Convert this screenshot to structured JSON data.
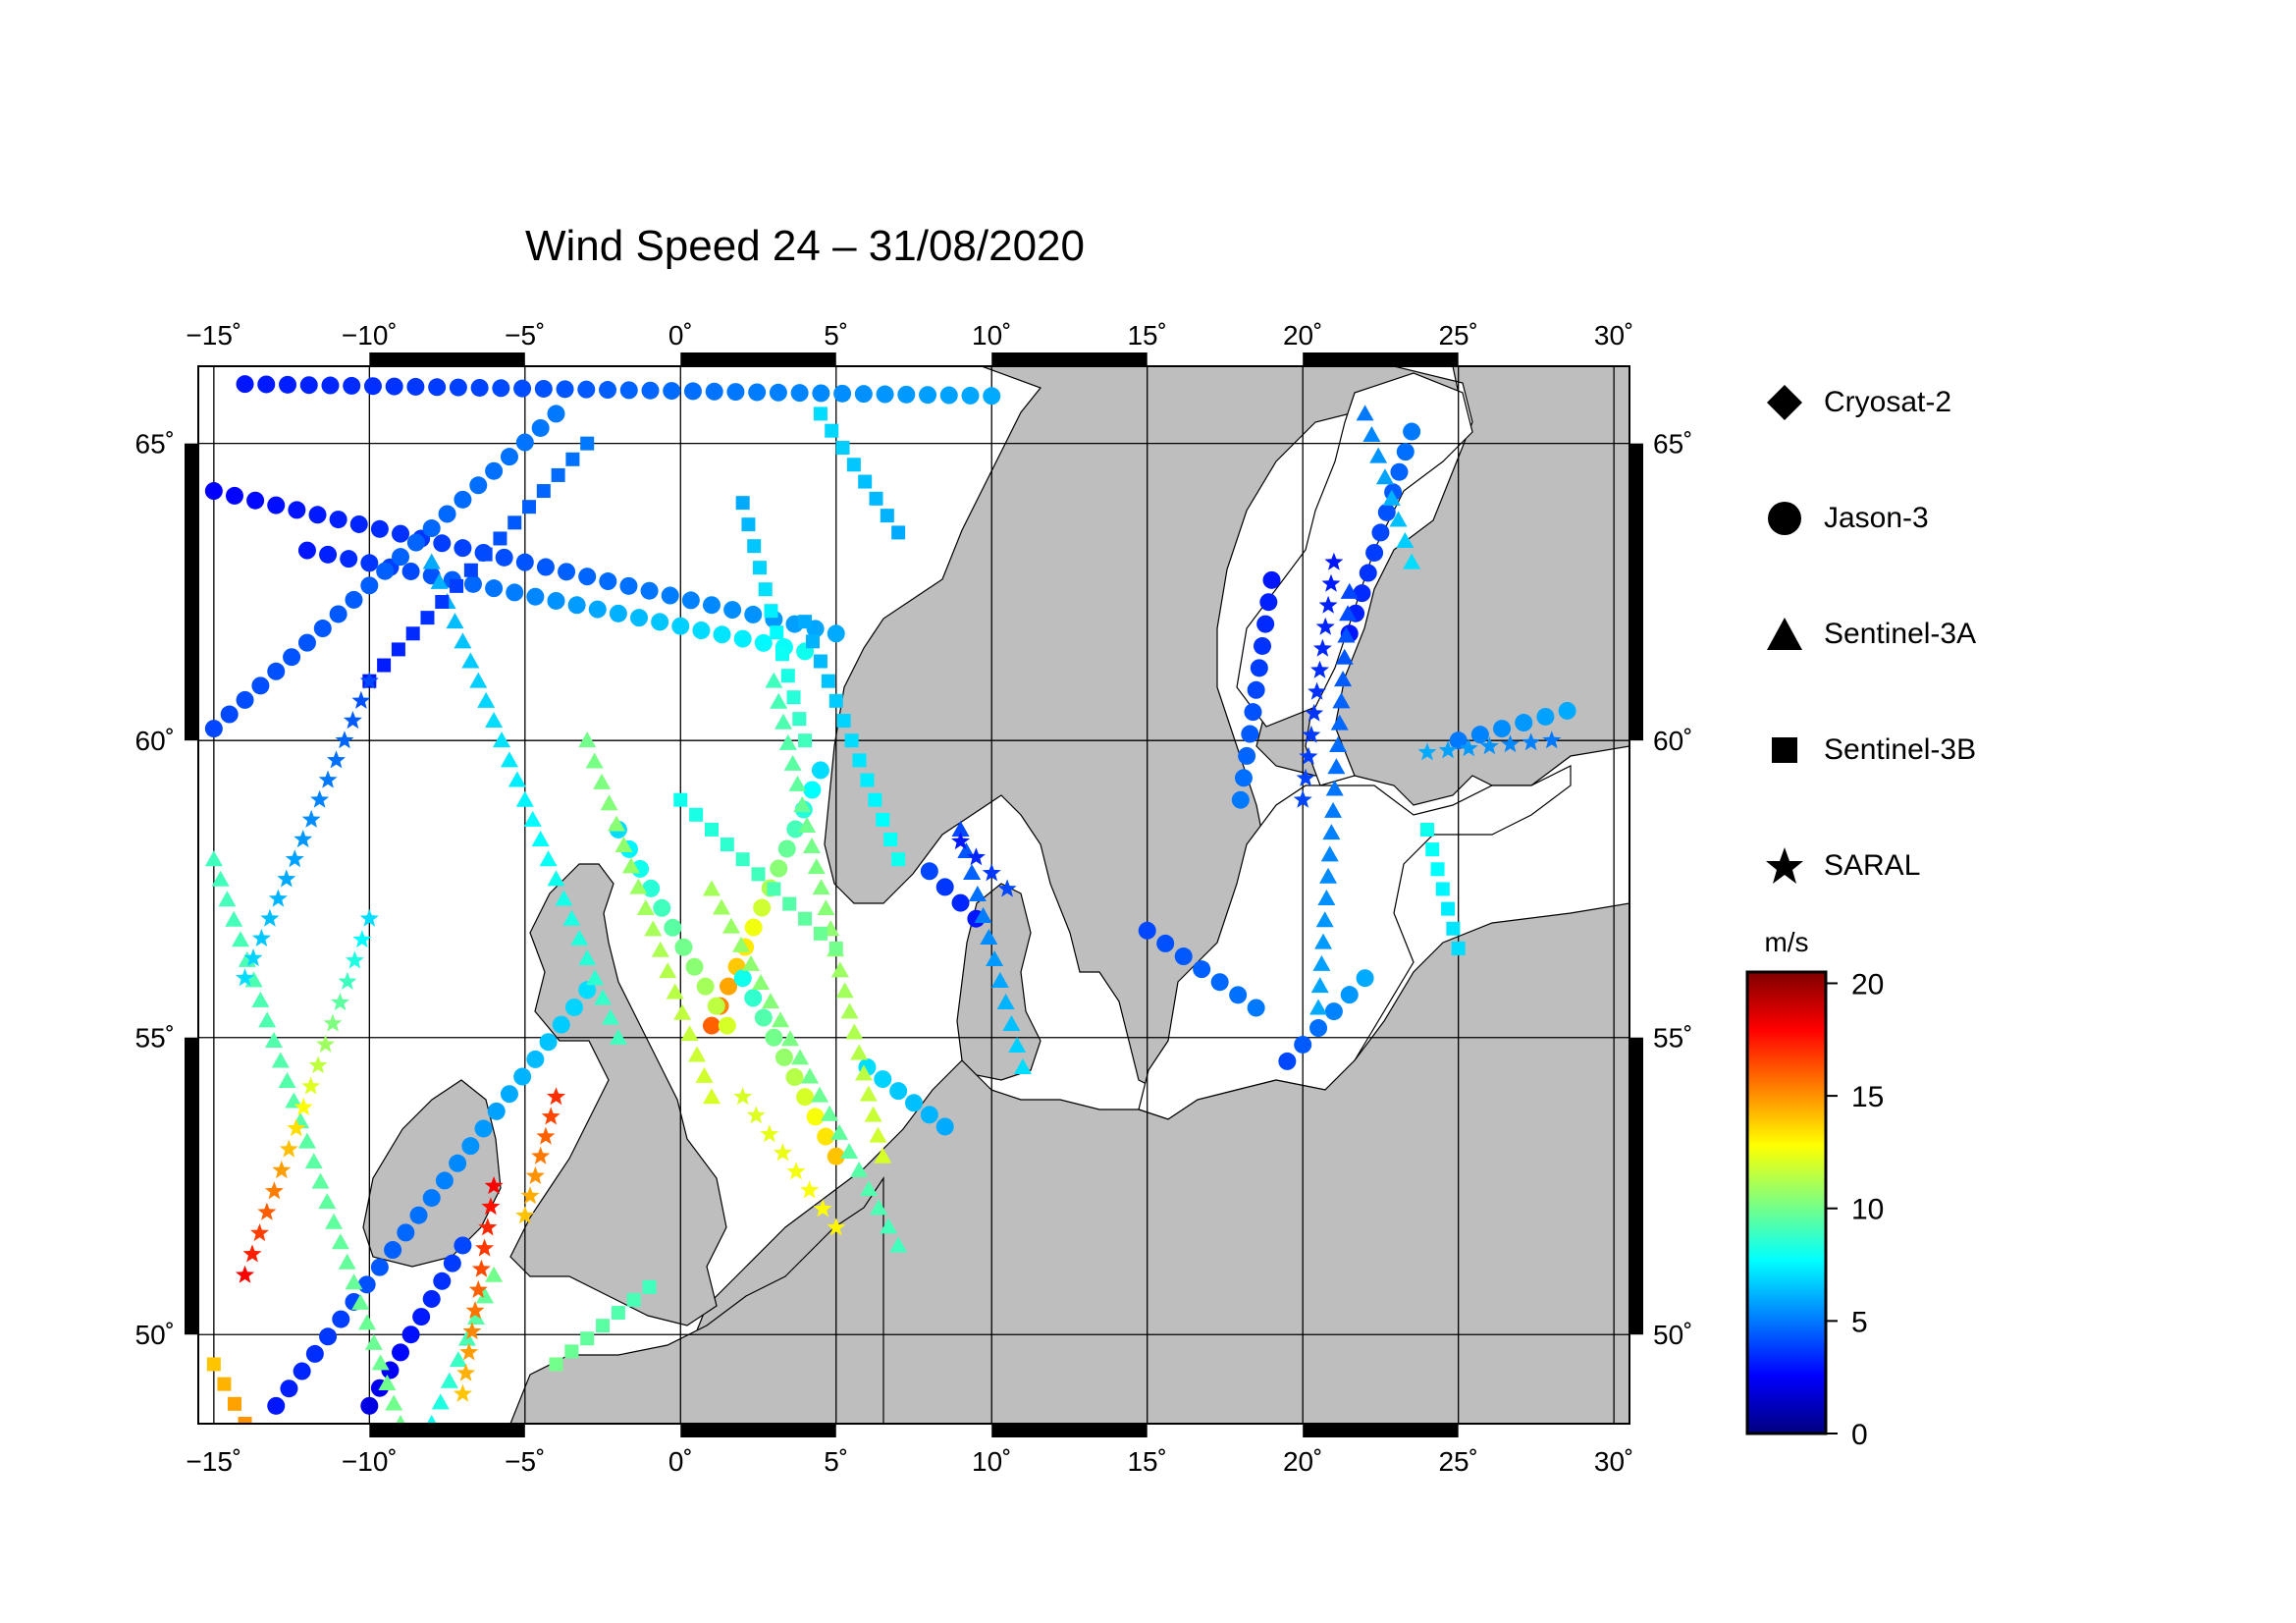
{
  "title": "Wind Speed 24 – 31/08/2020",
  "map": {
    "lon_ticks": [
      "−15˚",
      "−10˚",
      "−5˚",
      "0˚",
      "5˚",
      "10˚",
      "15˚",
      "20˚",
      "25˚",
      "30˚"
    ],
    "lat_ticks": [
      "65˚",
      "60˚",
      "55˚",
      "50˚"
    ],
    "lon_range": [
      -15.5,
      30.5
    ],
    "lat_range": [
      48.5,
      66.3
    ],
    "land_color": "#bebebe",
    "sea_color": "#ffffff"
  },
  "legend": {
    "items": [
      {
        "label": "Cryosat-2",
        "symbol": "diamond-icon"
      },
      {
        "label": "Jason-3",
        "symbol": "circle-icon"
      },
      {
        "label": "Sentinel-3A",
        "symbol": "triangle-icon"
      },
      {
        "label": "Sentinel-3B",
        "symbol": "square-icon"
      },
      {
        "label": "SARAL",
        "symbol": "star-icon"
      }
    ]
  },
  "colorbar": {
    "unit": "m/s",
    "ticks": [
      "20",
      "15",
      "10",
      "5",
      "0"
    ],
    "range": [
      0,
      20.5
    ],
    "colormap": [
      "#00007f",
      "#0000ff",
      "#007fff",
      "#00ffff",
      "#7fff7f",
      "#ffff00",
      "#ff7f00",
      "#ff0000",
      "#7f0000"
    ]
  },
  "chart_data": {
    "type": "scatter",
    "title": "Wind Speed 24 – 31/08/2020",
    "xlim": [
      -15.5,
      30.5
    ],
    "ylim": [
      48.5,
      66.3
    ],
    "value_unit": "m/s",
    "series": [
      {
        "name": "Jason-3",
        "marker": "circle",
        "tracks": [
          {
            "from": [
              -15,
              64.2
            ],
            "to": [
              5,
              61.8
            ],
            "v0": 2.5,
            "v1": 6
          },
          {
            "from": [
              -14,
              66
            ],
            "to": [
              10,
              65.8
            ],
            "v0": 3,
            "v1": 6
          },
          {
            "from": [
              -12,
              63.2
            ],
            "to": [
              4,
              61.5
            ],
            "v0": 3,
            "v1": 8
          },
          {
            "from": [
              -15,
              60.2
            ],
            "to": [
              -4,
              65.5
            ],
            "v0": 4,
            "v1": 5
          },
          {
            "from": [
              -13,
              48.8
            ],
            "to": [
              -3,
              55.8
            ],
            "v0": 3,
            "v1": 7
          },
          {
            "from": [
              -10,
              48.8
            ],
            "to": [
              -7,
              51.5
            ],
            "v0": 2,
            "v1": 4
          },
          {
            "from": [
              1,
              55.2
            ],
            "to": [
              4.5,
              59.5
            ],
            "v0": 16,
            "v1": 7
          },
          {
            "from": [
              5,
              53
            ],
            "to": [
              2,
              56
            ],
            "v0": 14,
            "v1": 8
          },
          {
            "from": [
              19,
              62.7
            ],
            "to": [
              18,
              59
            ],
            "v0": 3,
            "v1": 5
          },
          {
            "from": [
              22,
              56
            ],
            "to": [
              19.5,
              54.6
            ],
            "v0": 6,
            "v1": 4
          },
          {
            "from": [
              18.5,
              55.5
            ],
            "to": [
              15,
              56.8
            ],
            "v0": 5,
            "v1": 4
          },
          {
            "from": [
              23.5,
              65.2
            ],
            "to": [
              21.5,
              61.8
            ],
            "v0": 5,
            "v1": 3
          },
          {
            "from": [
              25,
              60
            ],
            "to": [
              28.5,
              60.5
            ],
            "v0": 5,
            "v1": 6
          },
          {
            "from": [
              8,
              57.8
            ],
            "to": [
              9.5,
              57
            ],
            "v0": 4,
            "v1": 3
          },
          {
            "from": [
              6,
              54.5
            ],
            "to": [
              8.5,
              53.5
            ],
            "v0": 7,
            "v1": 6
          },
          {
            "from": [
              -2,
              58.5
            ],
            "to": [
              1.5,
              55.2
            ],
            "v0": 7,
            "v1": 12
          }
        ]
      },
      {
        "name": "Sentinel-3A",
        "marker": "triangle",
        "tracks": [
          {
            "from": [
              -15,
              58
            ],
            "to": [
              -9,
              48.5
            ],
            "v0": 9,
            "v1": 10
          },
          {
            "from": [
              -8,
              63
            ],
            "to": [
              -2,
              55
            ],
            "v0": 6,
            "v1": 9
          },
          {
            "from": [
              3,
              61
            ],
            "to": [
              6.5,
              53
            ],
            "v0": 9,
            "v1": 12
          },
          {
            "from": [
              -3,
              60
            ],
            "to": [
              1,
              54
            ],
            "v0": 10,
            "v1": 12
          },
          {
            "from": [
              1,
              57.5
            ],
            "to": [
              7,
              51.5
            ],
            "v0": 11,
            "v1": 9
          },
          {
            "from": [
              9,
              58.5
            ],
            "to": [
              11,
              54.5
            ],
            "v0": 4,
            "v1": 7
          },
          {
            "from": [
              21.5,
              62.5
            ],
            "to": [
              20.5,
              55.5
            ],
            "v0": 4,
            "v1": 6
          },
          {
            "from": [
              22,
              65.5
            ],
            "to": [
              23.5,
              63
            ],
            "v0": 5,
            "v1": 7
          },
          {
            "from": [
              -6,
              51
            ],
            "to": [
              -8,
              48.5
            ],
            "v0": 10,
            "v1": 8
          }
        ]
      },
      {
        "name": "Sentinel-3B",
        "marker": "square",
        "tracks": [
          {
            "from": [
              -15,
              49.5
            ],
            "to": [
              -14,
              48.5
            ],
            "v0": 14,
            "v1": 15
          },
          {
            "from": [
              -10,
              61
            ],
            "to": [
              -3,
              65
            ],
            "v0": 3,
            "v1": 5
          },
          {
            "from": [
              2,
              64
            ],
            "to": [
              4,
              60
            ],
            "v0": 6,
            "v1": 9
          },
          {
            "from": [
              4,
              62
            ],
            "to": [
              7,
              58
            ],
            "v0": 6,
            "v1": 8
          },
          {
            "from": [
              0,
              59
            ],
            "to": [
              5,
              56.5
            ],
            "v0": 8,
            "v1": 10
          },
          {
            "from": [
              -1,
              50.8
            ],
            "to": [
              -4,
              49.5
            ],
            "v0": 9,
            "v1": 10
          },
          {
            "from": [
              24,
              58.5
            ],
            "to": [
              25,
              56.5
            ],
            "v0": 8,
            "v1": 7
          },
          {
            "from": [
              7,
              63.5
            ],
            "to": [
              4.5,
              65.5
            ],
            "v0": 6,
            "v1": 7
          }
        ]
      },
      {
        "name": "SARAL",
        "marker": "star",
        "tracks": [
          {
            "from": [
              -14,
              51
            ],
            "to": [
              -10,
              57
            ],
            "v0": 18,
            "v1": 7
          },
          {
            "from": [
              -6,
              52.5
            ],
            "to": [
              -7,
              49
            ],
            "v0": 18,
            "v1": 14
          },
          {
            "from": [
              -14,
              56
            ],
            "to": [
              -10,
              61
            ],
            "v0": 7,
            "v1": 4
          },
          {
            "from": [
              -4,
              54
            ],
            "to": [
              -5,
              52
            ],
            "v0": 17,
            "v1": 14
          },
          {
            "from": [
              2,
              54
            ],
            "to": [
              5,
              51.8
            ],
            "v0": 12,
            "v1": 13
          },
          {
            "from": [
              9,
              58.3
            ],
            "to": [
              10.5,
              57.5
            ],
            "v0": 3,
            "v1": 4
          },
          {
            "from": [
              21,
              63
            ],
            "to": [
              20,
              59
            ],
            "v0": 3,
            "v1": 4
          },
          {
            "from": [
              28,
              60
            ],
            "to": [
              24,
              59.8
            ],
            "v0": 5,
            "v1": 6
          }
        ]
      }
    ]
  }
}
